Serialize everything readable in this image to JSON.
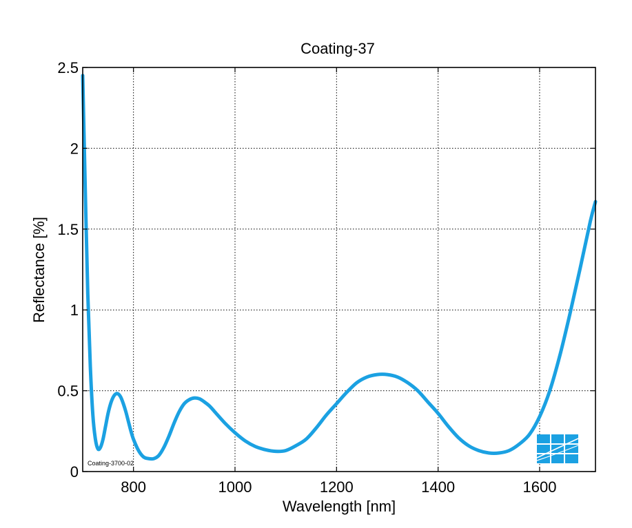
{
  "chart_data": {
    "type": "line",
    "title": "Coating-37",
    "xlabel": "Wavelength [nm]",
    "ylabel": "Reflectance [%]",
    "xlim": [
      700,
      1710
    ],
    "ylim": [
      0,
      2.5
    ],
    "xticks": [
      800,
      1000,
      1200,
      1400,
      1600
    ],
    "yticks": [
      0,
      0.5,
      1,
      1.5,
      2,
      2.5
    ],
    "xtick_labels": [
      "800",
      "1000",
      "1200",
      "1400",
      "1600"
    ],
    "ytick_labels": [
      "0",
      "0.5",
      "1",
      "1.5",
      "2",
      "2.5"
    ],
    "grid": true,
    "annotation": "Coating-3700-02",
    "series": [
      {
        "color": "#1ba1e2",
        "x": [
          700,
          705,
          710,
          715,
          720,
          725,
          730,
          735,
          740,
          745,
          750,
          755,
          760,
          765,
          770,
          775,
          780,
          785,
          790,
          795,
          800,
          810,
          820,
          830,
          840,
          850,
          860,
          870,
          880,
          890,
          900,
          910,
          920,
          930,
          940,
          950,
          960,
          980,
          1000,
          1020,
          1040,
          1060,
          1080,
          1100,
          1120,
          1140,
          1160,
          1180,
          1200,
          1220,
          1240,
          1260,
          1280,
          1300,
          1320,
          1340,
          1360,
          1380,
          1400,
          1420,
          1440,
          1460,
          1480,
          1500,
          1520,
          1540,
          1560,
          1580,
          1600,
          1620,
          1640,
          1660,
          1680,
          1700,
          1710
        ],
        "y": [
          2.45,
          1.75,
          1.1,
          0.65,
          0.35,
          0.2,
          0.14,
          0.15,
          0.2,
          0.28,
          0.36,
          0.42,
          0.46,
          0.48,
          0.48,
          0.46,
          0.42,
          0.37,
          0.31,
          0.25,
          0.2,
          0.13,
          0.09,
          0.08,
          0.08,
          0.1,
          0.15,
          0.22,
          0.3,
          0.37,
          0.42,
          0.445,
          0.455,
          0.45,
          0.43,
          0.405,
          0.37,
          0.3,
          0.24,
          0.19,
          0.155,
          0.135,
          0.125,
          0.13,
          0.16,
          0.2,
          0.27,
          0.35,
          0.42,
          0.49,
          0.55,
          0.585,
          0.6,
          0.6,
          0.585,
          0.55,
          0.5,
          0.43,
          0.36,
          0.28,
          0.21,
          0.16,
          0.13,
          0.115,
          0.115,
          0.13,
          0.17,
          0.23,
          0.34,
          0.5,
          0.72,
          0.98,
          1.26,
          1.55,
          1.67
        ]
      }
    ]
  },
  "logo": {
    "name": "grid-logo-icon",
    "color": "#1ba1e2"
  }
}
